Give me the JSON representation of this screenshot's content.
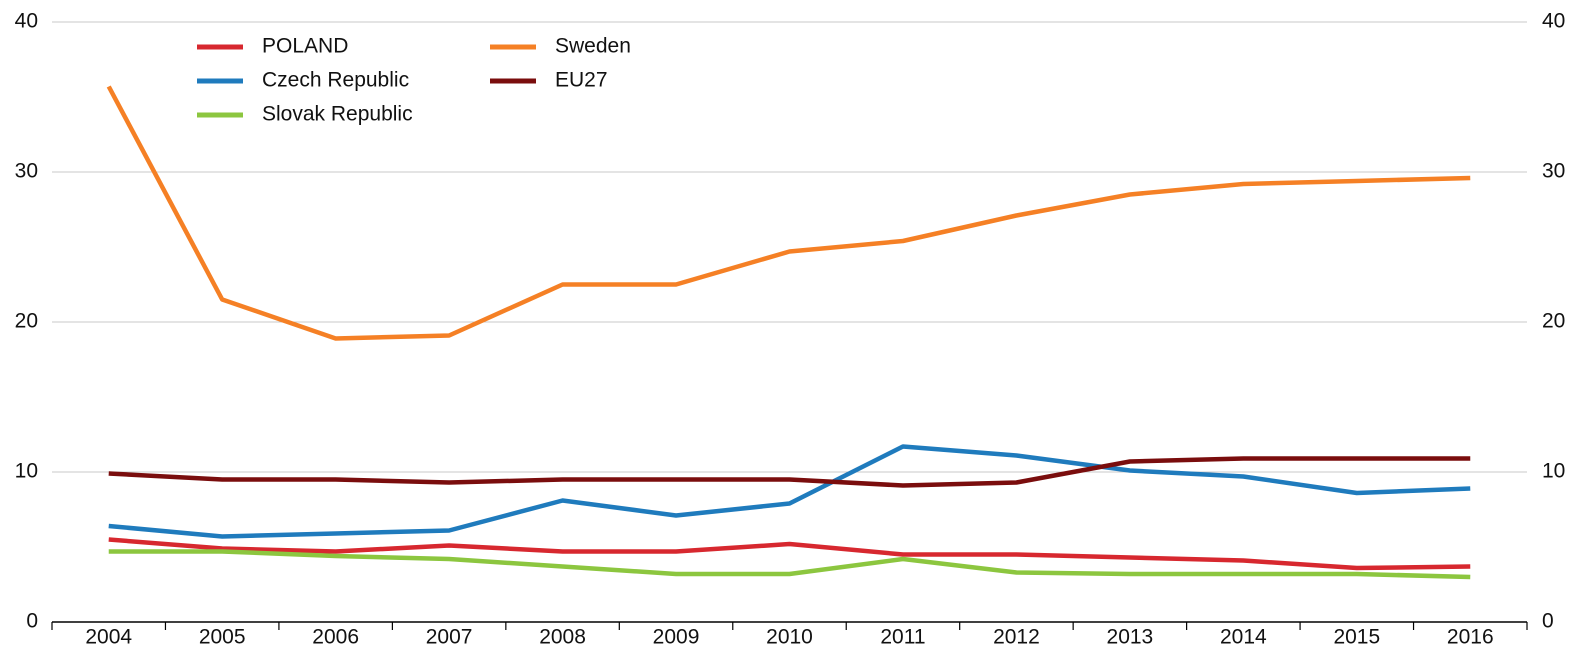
{
  "chart_data": {
    "type": "line",
    "categories": [
      "2004",
      "2005",
      "2006",
      "2007",
      "2008",
      "2009",
      "2010",
      "2011",
      "2012",
      "2013",
      "2014",
      "2015",
      "2016"
    ],
    "series": [
      {
        "name": "POLAND",
        "color": "#d7282f",
        "values": [
          5.5,
          4.9,
          4.7,
          5.1,
          4.7,
          4.7,
          5.2,
          4.5,
          4.5,
          4.3,
          4.1,
          3.6,
          3.7
        ]
      },
      {
        "name": "Czech Republic",
        "color": "#1f7bbd",
        "values": [
          6.4,
          5.7,
          5.9,
          6.1,
          8.1,
          7.1,
          7.9,
          11.7,
          11.1,
          10.1,
          9.7,
          8.6,
          8.9
        ]
      },
      {
        "name": "Slovak Republic",
        "color": "#8cc63f",
        "values": [
          4.7,
          4.7,
          4.4,
          4.2,
          3.7,
          3.2,
          3.2,
          4.2,
          3.3,
          3.2,
          3.2,
          3.2,
          3.0
        ]
      },
      {
        "name": "Sweden",
        "color": "#f58025",
        "values": [
          35.7,
          21.5,
          18.9,
          19.1,
          22.5,
          22.5,
          24.7,
          25.4,
          27.1,
          28.5,
          29.2,
          29.4,
          29.6
        ]
      },
      {
        "name": "EU27",
        "color": "#7a0d0d",
        "values": [
          9.9,
          9.5,
          9.5,
          9.3,
          9.5,
          9.5,
          9.5,
          9.1,
          9.3,
          10.7,
          10.9,
          10.9,
          10.9
        ]
      }
    ],
    "ylim": [
      0,
      40
    ],
    "yticks": [
      0,
      10,
      20,
      30,
      40
    ],
    "y2lim": [
      0,
      40
    ],
    "y2ticks": [
      0,
      10,
      20,
      30,
      40
    ],
    "grid": true,
    "legend": "top-left"
  }
}
